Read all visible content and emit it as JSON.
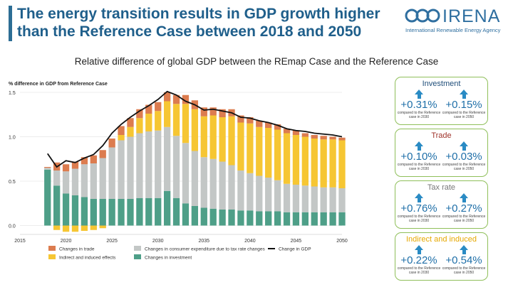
{
  "header": {
    "title": "The energy transition results in GDP growth higher than the Reference Case between 2018 and 2050",
    "logo_word": "IRENA",
    "logo_subtitle": "International Renewable Energy Agency",
    "brand_color": "#1f5f8b"
  },
  "subtitle": "Relative difference of global GDP between the REmap Case and the Reference Case",
  "kpis": [
    {
      "title": "Investment",
      "title_color": "#1f4e79",
      "left": {
        "value": "+0.31%",
        "note": "compared to the Reference case in 2030"
      },
      "right": {
        "value": "+0.15%",
        "note": "compared to the Reference case in 2050"
      }
    },
    {
      "title": "Trade",
      "title_color": "#a0342c",
      "left": {
        "value": "+0.10%",
        "note": "compared to the Reference case in 2030"
      },
      "right": {
        "value": "+0.03%",
        "note": "compared to the Reference case in 2050"
      }
    },
    {
      "title": "Tax rate",
      "title_color": "#777777",
      "left": {
        "value": "+0.76%",
        "note": "compared to the Reference case in 2030"
      },
      "right": {
        "value": "+0.27%",
        "note": "compared to the Reference case in 2050"
      }
    },
    {
      "title": "Indirect and induced",
      "title_color": "#e6a800",
      "left": {
        "value": "+0.22%",
        "note": "compared to the Reference case in 2030"
      },
      "right": {
        "value": "+0.54%",
        "note": "compared to the Reference case in 2050"
      }
    }
  ],
  "chart_data": {
    "type": "bar",
    "stacked": true,
    "ylabel": "% difference in GDP from Reference Case",
    "x": [
      2018,
      2019,
      2020,
      2021,
      2022,
      2023,
      2024,
      2025,
      2026,
      2027,
      2028,
      2029,
      2030,
      2031,
      2032,
      2033,
      2034,
      2035,
      2036,
      2037,
      2038,
      2039,
      2040,
      2041,
      2042,
      2043,
      2044,
      2045,
      2046,
      2047,
      2048,
      2049,
      2050
    ],
    "xlim": [
      2015,
      2050
    ],
    "xticks": [
      2015,
      2020,
      2025,
      2030,
      2035,
      2040,
      2045,
      2050
    ],
    "ylim": [
      -0.1,
      1.5
    ],
    "yticks": [
      "0.0",
      "0.5",
      "1.0",
      "1.5"
    ],
    "grid": true,
    "legend_position": "bottom",
    "series": [
      {
        "name": "Changes in investment",
        "color": "#4e9f88",
        "values": [
          0.63,
          0.45,
          0.36,
          0.34,
          0.32,
          0.3,
          0.3,
          0.3,
          0.3,
          0.3,
          0.31,
          0.31,
          0.31,
          0.39,
          0.31,
          0.25,
          0.22,
          0.2,
          0.19,
          0.18,
          0.18,
          0.17,
          0.17,
          0.16,
          0.16,
          0.16,
          0.15,
          0.15,
          0.15,
          0.15,
          0.15,
          0.15,
          0.15
        ]
      },
      {
        "name": "Changes in consumer expenditure due to tax rate changes",
        "color": "#c3c7c6",
        "values": [
          0.02,
          0.17,
          0.25,
          0.3,
          0.37,
          0.4,
          0.46,
          0.58,
          0.66,
          0.7,
          0.73,
          0.75,
          0.76,
          0.72,
          0.7,
          0.68,
          0.62,
          0.57,
          0.56,
          0.54,
          0.5,
          0.45,
          0.42,
          0.4,
          0.38,
          0.35,
          0.32,
          0.31,
          0.3,
          0.29,
          0.28,
          0.28,
          0.27
        ]
      },
      {
        "name": "Indirect and induced effects",
        "color": "#f6c633",
        "values": [
          0.0,
          -0.05,
          -0.07,
          -0.07,
          -0.06,
          -0.05,
          -0.03,
          0.0,
          0.06,
          0.11,
          0.17,
          0.2,
          0.22,
          0.29,
          0.36,
          0.44,
          0.47,
          0.46,
          0.49,
          0.5,
          0.55,
          0.54,
          0.56,
          0.55,
          0.56,
          0.57,
          0.57,
          0.56,
          0.55,
          0.54,
          0.54,
          0.54,
          0.54
        ]
      },
      {
        "name": "Changes in trade",
        "color": "#dc7c4f",
        "values": [
          0.01,
          0.09,
          0.08,
          0.08,
          0.08,
          0.09,
          0.09,
          0.1,
          0.1,
          0.1,
          0.1,
          0.1,
          0.1,
          0.1,
          0.1,
          0.1,
          0.1,
          0.1,
          0.09,
          0.09,
          0.08,
          0.08,
          0.07,
          0.07,
          0.06,
          0.06,
          0.05,
          0.05,
          0.04,
          0.04,
          0.04,
          0.03,
          0.03
        ]
      }
    ],
    "line": {
      "name": "Change in GDP",
      "color": "#111111",
      "values": [
        0.81,
        0.66,
        0.73,
        0.71,
        0.76,
        0.8,
        0.9,
        1.04,
        1.14,
        1.22,
        1.29,
        1.35,
        1.42,
        1.51,
        1.47,
        1.4,
        1.36,
        1.3,
        1.31,
        1.29,
        1.27,
        1.22,
        1.21,
        1.18,
        1.16,
        1.13,
        1.09,
        1.07,
        1.06,
        1.04,
        1.03,
        1.02,
        1.0
      ]
    }
  }
}
